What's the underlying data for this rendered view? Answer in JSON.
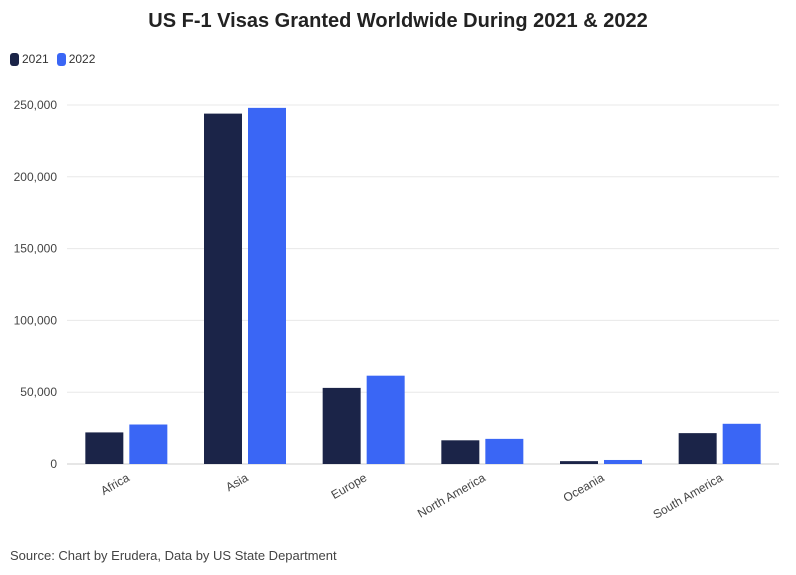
{
  "chart_data": {
    "type": "bar",
    "title": "US F-1 Visas Granted Worldwide During 2021 & 2022",
    "categories": [
      "Africa",
      "Asia",
      "Europe",
      "North America",
      "Oceania",
      "South America"
    ],
    "series": [
      {
        "name": "2021",
        "color": "#1b2448",
        "values": [
          22000,
          244000,
          53000,
          16500,
          2000,
          21500
        ]
      },
      {
        "name": "2022",
        "color": "#3a66f5",
        "values": [
          27500,
          248000,
          61500,
          17500,
          2800,
          28000
        ]
      }
    ],
    "xlabel": "",
    "ylabel": "",
    "ylim": [
      0,
      250000
    ],
    "yticks": [
      0,
      50000,
      100000,
      150000,
      200000,
      250000
    ],
    "ytick_labels": [
      "0",
      "50,000",
      "100,000",
      "150,000",
      "200,000",
      "250,000"
    ],
    "grid": true,
    "legend_position": "top-left"
  },
  "source": "Source: Chart by Erudera, Data by US State Department"
}
